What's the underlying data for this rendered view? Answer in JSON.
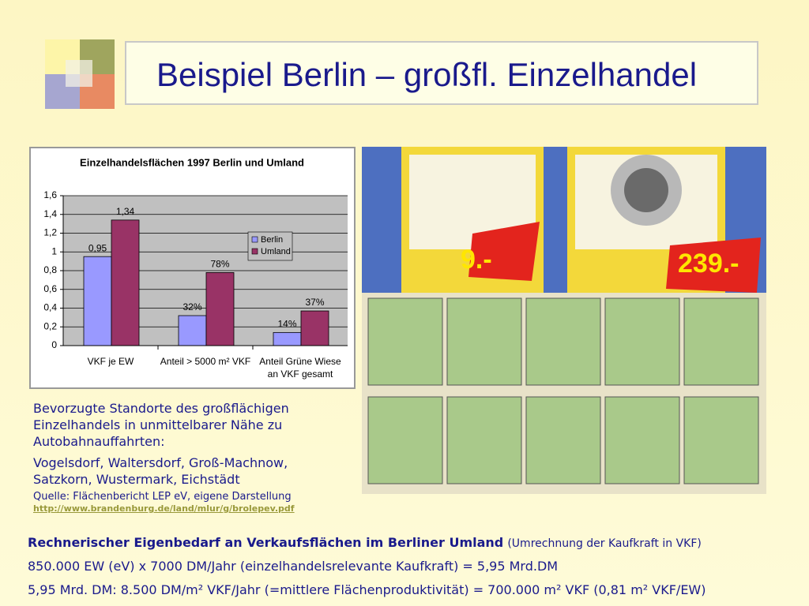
{
  "title": "Beispiel Berlin – großfl. Einzelhandel",
  "chart_data": {
    "type": "bar",
    "title": "Einzelhandelsflächen 1997 Berlin und Umland",
    "categories": [
      "VKF je EW",
      "Anteil > 5000 m² VKF",
      "Anteil Grüne Wiese an VKF gesamt"
    ],
    "series": [
      {
        "name": "Berlin",
        "color": "#9999ff",
        "values": [
          0.95,
          0.32,
          0.14
        ],
        "value_labels": [
          "0,95",
          "32%",
          "14%"
        ]
      },
      {
        "name": "Umland",
        "color": "#993366",
        "values": [
          1.34,
          0.78,
          0.37
        ],
        "value_labels": [
          "1,34",
          "78%",
          "37%"
        ]
      }
    ],
    "ylim": [
      0,
      1.6
    ],
    "yticks": [
      0,
      {
        "value": 0.2,
        "label": "0,2"
      },
      {
        "value": 0.4,
        "label": "0,4"
      },
      {
        "value": 0.6,
        "label": "0,6"
      },
      {
        "value": 0.8,
        "label": "0,8"
      },
      1,
      {
        "value": 1.2,
        "label": "1,2"
      },
      {
        "value": 1.4,
        "label": "1,4"
      },
      {
        "value": 1.6,
        "label": "1,6"
      }
    ],
    "grid": true,
    "legend": "right"
  },
  "photo": {
    "prices": [
      "9.-",
      "239.-"
    ]
  },
  "text": {
    "paragraphs": [
      "Bevorzugte Standorte des großflächigen Einzelhandels in unmittelbarer Nähe zu Autobahnauffahrten:",
      "Vogelsdorf, Waltersdorf, Groß-Machnow, Satzkorn, Wustermark, Eichstädt"
    ],
    "source": "Quelle: Flächenbericht LEP eV, eigene Darstellung",
    "link": "http://www.brandenburg.de/land/mlur/g/brolepev.pdf"
  },
  "bottom": {
    "heading": "Rechnerischer Eigenbedarf an Verkaufsflächen im Berliner Umland",
    "heading_note": "(Umrechnung der Kaufkraft in VKF)",
    "lines": [
      "850.000 EW (eV) x 7000 DM/Jahr (einzelhandelsrelevante Kaufkraft) = 5,95 Mrd.DM",
      "5,95 Mrd. DM: 8.500 DM/m² VKF/Jahr (=mittlere Flächenproduktivität) = 700.000 m² VKF (0,81 m² VKF/EW)"
    ]
  }
}
